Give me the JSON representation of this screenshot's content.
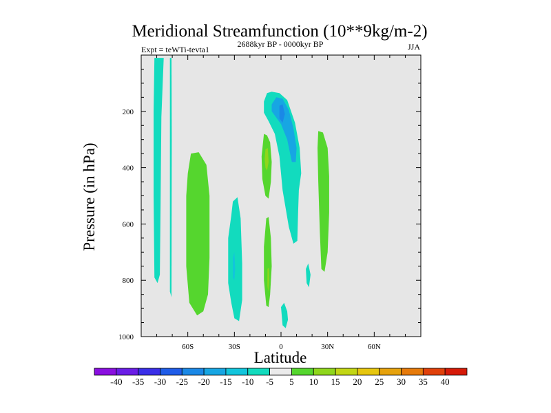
{
  "chart_data": {
    "type": "contour",
    "title": "Meridional Streamfunction (10**9kg/m-2)",
    "subtitle_left": "Expt = teWTi-tevta1",
    "subtitle_center": "2688kyr BP - 0000kyr BP",
    "subtitle_right": "JJA",
    "xlabel": "Latitude",
    "ylabel": "Pressure (in hPa)",
    "xlim": [
      -90,
      90
    ],
    "ylim": [
      1000,
      0
    ],
    "xticks": [
      {
        "value": -60,
        "label": "60S"
      },
      {
        "value": -30,
        "label": "30S"
      },
      {
        "value": 0,
        "label": "0"
      },
      {
        "value": 30,
        "label": "30N"
      },
      {
        "value": 60,
        "label": "60N"
      }
    ],
    "yticks": [
      {
        "value": 200,
        "label": "200"
      },
      {
        "value": 400,
        "label": "400"
      },
      {
        "value": 600,
        "label": "600"
      },
      {
        "value": 800,
        "label": "800"
      },
      {
        "value": 1000,
        "label": "1000"
      }
    ],
    "background_color": "#e6e6e6",
    "colorbar": {
      "labels": [
        "-40",
        "-35",
        "-30",
        "-25",
        "-20",
        "-15",
        "-10",
        "-5",
        "5",
        "10",
        "15",
        "20",
        "25",
        "30",
        "35",
        "40"
      ],
      "colors": [
        "#8a0fe0",
        "#6a1de6",
        "#3a2ee8",
        "#1f5ce8",
        "#1a88e6",
        "#17a6e3",
        "#12c5dc",
        "#12dbbe",
        "#ebebeb",
        "#55d62e",
        "#8fd61c",
        "#c2d614",
        "#e6c60e",
        "#e6a20c",
        "#e67a0a",
        "#e0400a",
        "#d61a08"
      ]
    },
    "regions": [
      {
        "name": "band-80S",
        "fill": "#12dbbe",
        "points": [
          [
            -81.5,
            10
          ],
          [
            -75.5,
            10
          ],
          [
            -77,
            220
          ],
          [
            -77.5,
            520
          ],
          [
            -78,
            780
          ],
          [
            -79.5,
            810
          ],
          [
            -81.5,
            790
          ],
          [
            -82,
            500
          ],
          [
            -82,
            200
          ]
        ]
      },
      {
        "name": "band-70S",
        "fill": "#12dbbe",
        "points": [
          [
            -71.5,
            10
          ],
          [
            -70.5,
            10
          ],
          [
            -70.3,
            300
          ],
          [
            -70.5,
            860
          ],
          [
            -71.5,
            840
          ],
          [
            -71.5,
            500
          ]
        ]
      },
      {
        "name": "blob-58S",
        "fill": "#55d62e",
        "points": [
          [
            -58,
            350
          ],
          [
            -53,
            345
          ],
          [
            -48,
            390
          ],
          [
            -46,
            500
          ],
          [
            -46,
            720
          ],
          [
            -47,
            850
          ],
          [
            -50,
            910
          ],
          [
            -54,
            925
          ],
          [
            -59,
            880
          ],
          [
            -61,
            750
          ],
          [
            -61,
            500
          ],
          [
            -60,
            420
          ]
        ]
      },
      {
        "name": "blob-30S",
        "fill": "#12dbbe",
        "points": [
          [
            -31,
            520
          ],
          [
            -28,
            505
          ],
          [
            -26,
            580
          ],
          [
            -25,
            740
          ],
          [
            -25,
            870
          ],
          [
            -27,
            945
          ],
          [
            -30,
            935
          ],
          [
            -32,
            880
          ],
          [
            -34,
            810
          ],
          [
            -34,
            650
          ],
          [
            -32,
            570
          ]
        ]
      },
      {
        "name": "inner-30S",
        "fill": "#12c5dc",
        "points": [
          [
            -31,
            720
          ],
          [
            -30,
            700
          ],
          [
            -29.5,
            760
          ],
          [
            -30,
            800
          ],
          [
            -31,
            790
          ]
        ]
      },
      {
        "name": "blob-10S-upper",
        "fill": "#55d62e",
        "points": [
          [
            -11,
            280
          ],
          [
            -9,
            285
          ],
          [
            -7,
            310
          ],
          [
            -6,
            380
          ],
          [
            -6.5,
            450
          ],
          [
            -8,
            510
          ],
          [
            -10,
            500
          ],
          [
            -12,
            440
          ],
          [
            -12.5,
            360
          ]
        ]
      },
      {
        "name": "inner-10S-upper",
        "fill": "#8fd61c",
        "points": [
          [
            -10,
            335
          ],
          [
            -8.5,
            330
          ],
          [
            -8,
            380
          ],
          [
            -9,
            410
          ],
          [
            -10,
            400
          ],
          [
            -10.5,
            370
          ]
        ]
      },
      {
        "name": "blob-10S-lower",
        "fill": "#55d62e",
        "points": [
          [
            -9.5,
            580
          ],
          [
            -8,
            575
          ],
          [
            -6.5,
            650
          ],
          [
            -6,
            750
          ],
          [
            -7,
            850
          ],
          [
            -8,
            895
          ],
          [
            -9.5,
            890
          ],
          [
            -11,
            800
          ],
          [
            -11,
            680
          ]
        ]
      },
      {
        "name": "inner-10S-lower",
        "fill": "#8fd61c",
        "points": [
          [
            -8.7,
            760
          ],
          [
            -7.8,
            755
          ],
          [
            -7.6,
            800
          ],
          [
            -8.2,
            840
          ],
          [
            -8.8,
            820
          ]
        ]
      },
      {
        "name": "blob-eq-upper",
        "fill": "#12dbbe",
        "points": [
          [
            -11,
            165
          ],
          [
            -9,
            135
          ],
          [
            -6,
            130
          ],
          [
            -1,
            135
          ],
          [
            4,
            160
          ],
          [
            9,
            240
          ],
          [
            12,
            330
          ],
          [
            13,
            420
          ],
          [
            11.5,
            480
          ],
          [
            11,
            560
          ],
          [
            10.5,
            660
          ],
          [
            8,
            670
          ],
          [
            5,
            610
          ],
          [
            1,
            480
          ],
          [
            -1,
            360
          ],
          [
            -4,
            280
          ],
          [
            -8,
            235
          ],
          [
            -11,
            205
          ]
        ]
      },
      {
        "name": "inner-eq-a",
        "fill": "#17a6e3",
        "points": [
          [
            -6,
            175
          ],
          [
            -3,
            150
          ],
          [
            1,
            155
          ],
          [
            5,
            195
          ],
          [
            8,
            260
          ],
          [
            10,
            330
          ],
          [
            9.5,
            380
          ],
          [
            7,
            380
          ],
          [
            4,
            300
          ],
          [
            0,
            245
          ],
          [
            -4,
            215
          ],
          [
            -6,
            200
          ]
        ]
      },
      {
        "name": "inner-eq-b",
        "fill": "#1a88e6",
        "points": [
          [
            -1,
            180
          ],
          [
            1,
            175
          ],
          [
            2.5,
            210
          ],
          [
            1,
            240
          ],
          [
            -1,
            225
          ]
        ]
      },
      {
        "name": "blob-20N-small",
        "fill": "#12dbbe",
        "points": [
          [
            16,
            760
          ],
          [
            17.5,
            740
          ],
          [
            19,
            780
          ],
          [
            18,
            825
          ],
          [
            16.5,
            810
          ]
        ]
      },
      {
        "name": "blob-eq-lower",
        "fill": "#12dbbe",
        "points": [
          [
            0,
            895
          ],
          [
            2,
            880
          ],
          [
            4,
            910
          ],
          [
            4.5,
            940
          ],
          [
            3,
            970
          ],
          [
            1,
            960
          ]
        ]
      },
      {
        "name": "blob-25N",
        "fill": "#55d62e",
        "points": [
          [
            24,
            270
          ],
          [
            27,
            275
          ],
          [
            30,
            330
          ],
          [
            31,
            430
          ],
          [
            31,
            560
          ],
          [
            30,
            700
          ],
          [
            28,
            770
          ],
          [
            26,
            760
          ],
          [
            25,
            630
          ],
          [
            24,
            450
          ],
          [
            23.5,
            330
          ]
        ]
      }
    ]
  }
}
